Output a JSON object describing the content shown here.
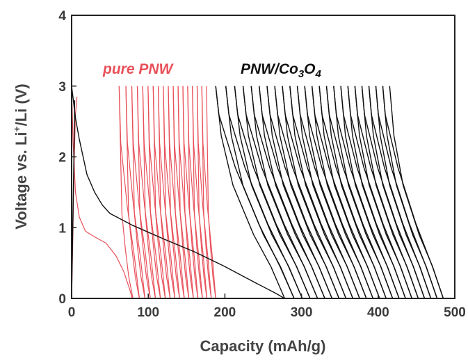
{
  "chart_data": {
    "type": "line",
    "title": "",
    "xlabel": "Capacity (mAh/g)",
    "ylabel_parts": [
      "Voltage vs. Li",
      "+",
      "/Li (V)"
    ],
    "xlim": [
      0,
      500
    ],
    "ylim": [
      0,
      4
    ],
    "xticks": [
      0,
      100,
      200,
      300,
      400,
      500
    ],
    "yticks": [
      0,
      1,
      2,
      3,
      4
    ],
    "grid": false,
    "colors": {
      "pure_pnw": "#e8505a",
      "pnw_co3o4": "#111111",
      "axis": "#222222"
    },
    "legend": [
      {
        "series": "pure_pnw",
        "parts": [
          "pure PNW"
        ],
        "sub": []
      },
      {
        "series": "pnw_co3o4",
        "parts": [
          "PNW/Co",
          "3",
          "O",
          "4"
        ],
        "sub": [
          1,
          3
        ]
      }
    ],
    "series": [
      {
        "key": "pure_pnw",
        "first_discharge": [
          [
            0,
            2.95
          ],
          [
            2,
            2.2
          ],
          [
            5,
            1.5
          ],
          [
            10,
            1.15
          ],
          [
            18,
            0.95
          ],
          [
            30,
            0.87
          ],
          [
            45,
            0.78
          ],
          [
            58,
            0.6
          ],
          [
            68,
            0.38
          ],
          [
            76,
            0.12
          ],
          [
            79,
            0
          ]
        ],
        "first_charge": [
          [
            0,
            0
          ],
          [
            1.5,
            0.8
          ],
          [
            3,
            1.8
          ],
          [
            5,
            2.6
          ],
          [
            7,
            2.85
          ]
        ],
        "cycles": {
          "count": 18,
          "start_x0": 80,
          "end_x0": 188,
          "width_first": 18,
          "width_last": 12,
          "top_v": 3.0,
          "charge_shape": [
            [
              0,
              0
            ],
            [
              0.3,
              0.3
            ],
            [
              0.55,
              0.7
            ],
            [
              0.8,
              1.2
            ],
            [
              1,
              3.0
            ]
          ],
          "discharge_shape": [
            [
              0,
              3.0
            ],
            [
              0.08,
              2.2
            ],
            [
              0.4,
              1.3
            ],
            [
              0.75,
              0.6
            ],
            [
              1,
              0
            ]
          ]
        }
      },
      {
        "key": "pnw_co3o4",
        "first_discharge": [
          [
            0,
            3.0
          ],
          [
            5,
            2.55
          ],
          [
            10,
            2.25
          ],
          [
            15,
            2.0
          ],
          [
            20,
            1.75
          ],
          [
            30,
            1.5
          ],
          [
            40,
            1.32
          ],
          [
            50,
            1.2
          ],
          [
            80,
            1.03
          ],
          [
            120,
            0.84
          ],
          [
            160,
            0.66
          ],
          [
            200,
            0.45
          ],
          [
            240,
            0.22
          ],
          [
            265,
            0.08
          ],
          [
            278,
            0
          ]
        ],
        "first_charge": [
          [
            0,
            0
          ],
          [
            1.5,
            1.0
          ],
          [
            3,
            2.0
          ],
          [
            4,
            2.8
          ]
        ],
        "cycles": {
          "count": 24,
          "start_x0": 278,
          "end_x0": 485,
          "width_first": 90,
          "width_last": 70,
          "top_v": 3.0,
          "charge_shape": [
            [
              0,
              0
            ],
            [
              0.2,
              0.45
            ],
            [
              0.45,
              0.9
            ],
            [
              0.75,
              1.6
            ],
            [
              0.92,
              2.3
            ],
            [
              1,
              3.0
            ]
          ],
          "discharge_shape": [
            [
              0,
              3.0
            ],
            [
              0.04,
              2.6
            ],
            [
              0.25,
              1.85
            ],
            [
              0.55,
              1.05
            ],
            [
              0.82,
              0.45
            ],
            [
              1,
              0
            ]
          ]
        }
      }
    ]
  }
}
